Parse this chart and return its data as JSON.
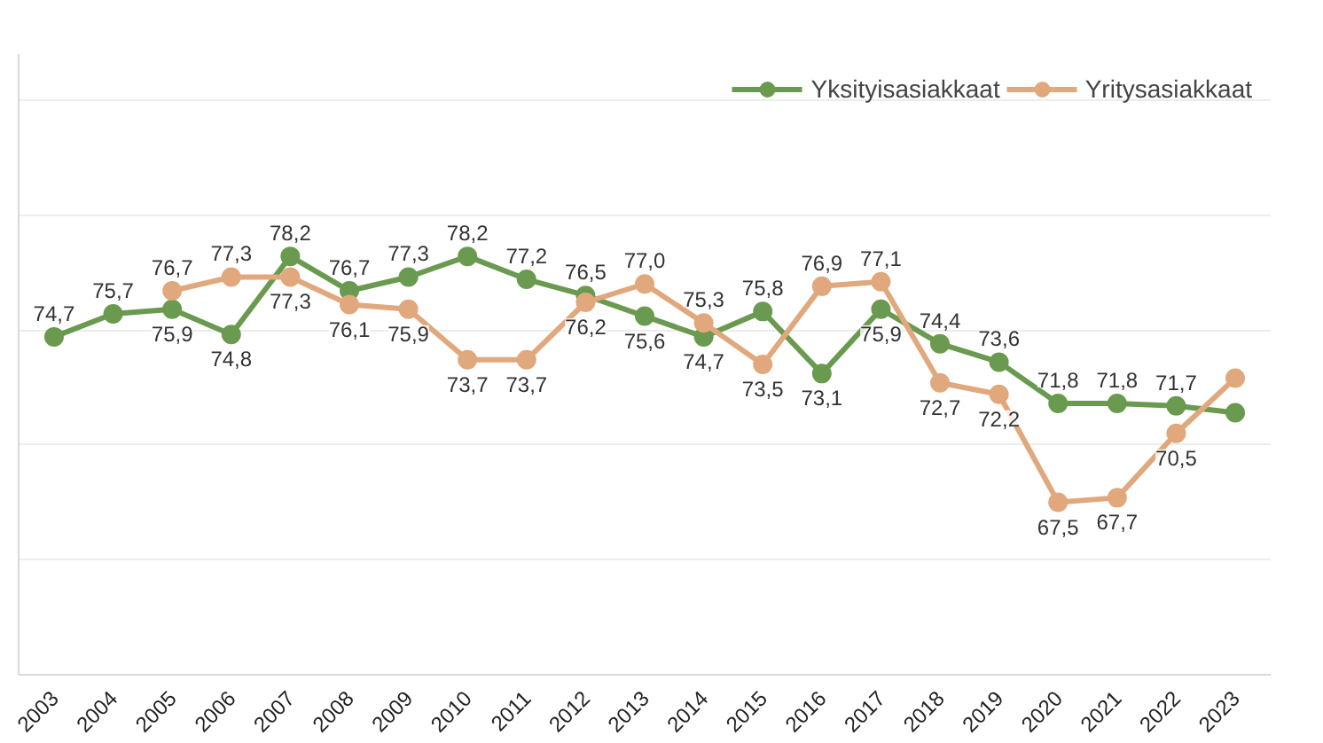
{
  "chart_data": {
    "type": "line",
    "categories": [
      "2003",
      "2004",
      "2005",
      "2006",
      "2007",
      "2008",
      "2009",
      "2010",
      "2011",
      "2012",
      "2013",
      "2014",
      "2015",
      "2016",
      "2017",
      "2018",
      "2019",
      "2020",
      "2021",
      "2022",
      "2023"
    ],
    "series": [
      {
        "name": "Yksityisasiakkaat",
        "color": "#6a9a4f",
        "values": [
          74.7,
          75.7,
          75.9,
          74.8,
          78.2,
          76.7,
          77.3,
          78.2,
          77.2,
          76.5,
          75.6,
          74.7,
          75.8,
          73.1,
          75.9,
          74.4,
          73.6,
          71.8,
          71.8,
          71.7,
          71.4
        ],
        "value_labels": [
          "74,7",
          "75,7",
          "75,9",
          "74,8",
          "78,2",
          "76,7",
          "77,3",
          "78,2",
          "77,2",
          "76,5",
          "75,6",
          "74,7",
          "75,8",
          "73,1",
          "75,9",
          "74,4",
          "73,6",
          "71,8",
          "71,8",
          "71,7",
          null
        ]
      },
      {
        "name": "Yritysasiakkaat",
        "color": "#e0a87c",
        "values": [
          null,
          null,
          76.7,
          77.3,
          77.3,
          76.1,
          75.9,
          73.7,
          73.7,
          76.2,
          77.0,
          75.3,
          73.5,
          76.9,
          77.1,
          72.7,
          72.2,
          67.5,
          67.7,
          70.5,
          72.9
        ],
        "value_labels": [
          null,
          null,
          "76,7",
          "77,3",
          "77,3",
          "76,1",
          "75,9",
          "73,7",
          "73,7",
          "76,2",
          "77,0",
          "75,3",
          "73,5",
          "76,9",
          "77,1",
          "72,7",
          "72,2",
          "67,5",
          "67,7",
          "70,5",
          null
        ]
      }
    ],
    "ylim": [
      60,
      87
    ],
    "yticks": [
      {
        "value": 60,
        "label": null
      },
      {
        "value": 65,
        "label": null
      },
      {
        "value": 70,
        "label": null
      },
      {
        "value": 75,
        "label": null
      },
      {
        "value": 80,
        "label": null
      },
      {
        "value": 85,
        "label": null
      }
    ],
    "tick_labels": "x",
    "grid": "y",
    "legend": "top right",
    "marker": "circle",
    "line_style": "solid"
  }
}
